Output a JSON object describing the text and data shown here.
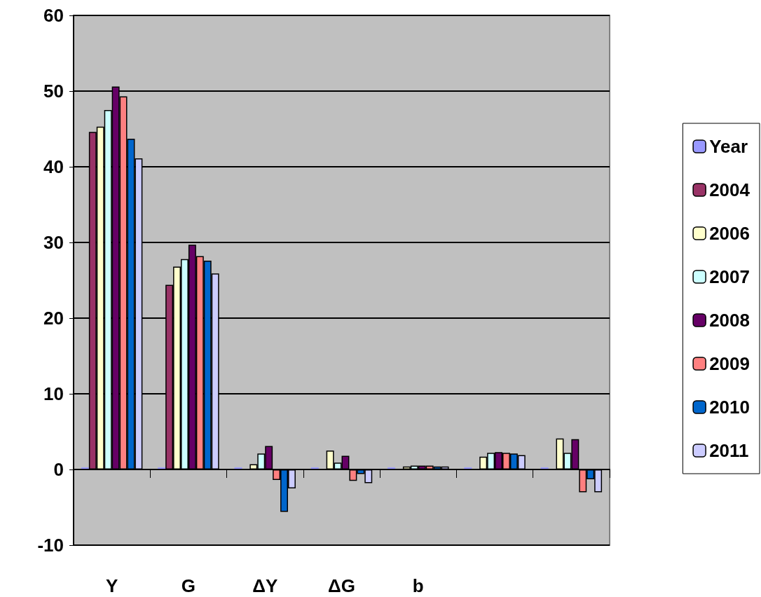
{
  "chart_data": {
    "type": "bar",
    "categories": [
      "Y",
      "G",
      "ΔY",
      "ΔG",
      "b",
      null,
      null
    ],
    "series": [
      {
        "name": "Year",
        "color": "#9999ff",
        "values": [
          0,
          0,
          0,
          0,
          0,
          0,
          0
        ]
      },
      {
        "name": "2004",
        "color": "#993366",
        "values": [
          44.6,
          24.4,
          null,
          null,
          null,
          null,
          null
        ]
      },
      {
        "name": "2006",
        "color": "#ffffcc",
        "values": [
          45.3,
          26.8,
          0.7,
          2.5,
          0.4,
          1.7,
          4.1
        ]
      },
      {
        "name": "2007",
        "color": "#ccffff",
        "values": [
          47.5,
          27.8,
          2.1,
          0.9,
          0.5,
          2.2,
          2.2
        ]
      },
      {
        "name": "2008",
        "color": "#660066",
        "values": [
          50.6,
          29.7,
          3.1,
          1.8,
          0.5,
          2.3,
          4.0
        ]
      },
      {
        "name": "2009",
        "color": "#ff8080",
        "values": [
          49.3,
          28.2,
          -1.4,
          -1.5,
          0.5,
          2.2,
          -3.0
        ]
      },
      {
        "name": "2010",
        "color": "#0066cc",
        "values": [
          43.7,
          27.6,
          -5.6,
          -0.6,
          0.4,
          2.1,
          -1.3
        ]
      },
      {
        "name": "2011",
        "color": "#ccccff",
        "values": [
          41.1,
          25.9,
          -2.5,
          -1.8,
          0.4,
          1.9,
          -3.0
        ]
      }
    ],
    "ylim": [
      -10,
      60
    ],
    "yticks": [
      -10,
      0,
      10,
      20,
      30,
      40,
      50,
      60
    ],
    "grid": "y",
    "legend": "right"
  }
}
